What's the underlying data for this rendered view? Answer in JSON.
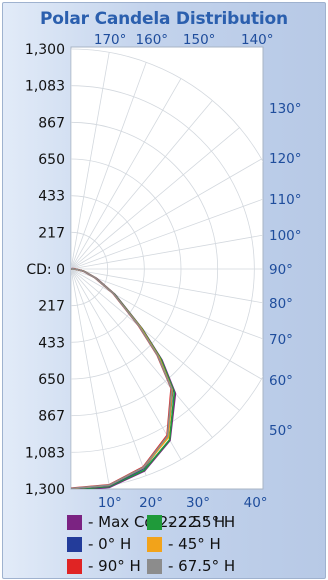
{
  "chart_data": {
    "type": "polar-line",
    "title": "Polar Candela Distribution",
    "candela_axis_label": "CD:",
    "candela_ticks": [
      0,
      217,
      433,
      650,
      867,
      1083,
      1300
    ],
    "candela_tick_labels": [
      "0",
      "217",
      "433",
      "650",
      "867",
      "1,083",
      "1,300"
    ],
    "rmax": 1300,
    "angle_ticks_top": [
      170,
      160,
      150,
      140
    ],
    "angle_ticks_right": [
      130,
      120,
      110,
      100,
      90,
      80,
      70,
      60,
      50
    ],
    "angle_ticks_bottom": [
      10,
      20,
      30,
      40
    ],
    "angle_unit": "°",
    "series": [
      {
        "name": "- Max Cd 222.5° H",
        "color": "#7b2382",
        "points": [
          [
            0,
            1310
          ],
          [
            10,
            1310
          ],
          [
            20,
            1270
          ],
          [
            30,
            1170
          ],
          [
            40,
            960
          ],
          [
            45,
            760
          ],
          [
            50,
            550
          ],
          [
            60,
            300
          ],
          [
            70,
            160
          ],
          [
            80,
            80
          ],
          [
            85,
            40
          ],
          [
            90,
            20
          ],
          [
            95,
            15
          ],
          [
            100,
            10
          ],
          [
            110,
            5
          ],
          [
            120,
            0
          ]
        ]
      },
      {
        "name": "- 22.5° H",
        "color": "#1f9a3a",
        "points": [
          [
            0,
            1305
          ],
          [
            10,
            1305
          ],
          [
            20,
            1265
          ],
          [
            30,
            1165
          ],
          [
            40,
            950
          ],
          [
            45,
            750
          ],
          [
            50,
            545
          ],
          [
            60,
            295
          ],
          [
            70,
            155
          ],
          [
            80,
            78
          ],
          [
            85,
            38
          ],
          [
            90,
            20
          ],
          [
            95,
            14
          ],
          [
            100,
            9
          ],
          [
            110,
            4
          ],
          [
            120,
            0
          ]
        ]
      },
      {
        "name": "- 0° H",
        "color": "#233c9a",
        "points": [
          [
            0,
            1300
          ],
          [
            10,
            1300
          ],
          [
            20,
            1255
          ],
          [
            30,
            1145
          ],
          [
            40,
            935
          ],
          [
            45,
            730
          ],
          [
            50,
            530
          ],
          [
            60,
            290
          ],
          [
            70,
            150
          ],
          [
            80,
            75
          ],
          [
            85,
            36
          ],
          [
            90,
            18
          ],
          [
            95,
            13
          ],
          [
            100,
            8
          ],
          [
            110,
            4
          ],
          [
            120,
            0
          ]
        ]
      },
      {
        "name": "- 45° H",
        "color": "#f2a31a",
        "points": [
          [
            0,
            1298
          ],
          [
            10,
            1298
          ],
          [
            20,
            1250
          ],
          [
            30,
            1150
          ],
          [
            40,
            930
          ],
          [
            45,
            735
          ],
          [
            50,
            535
          ],
          [
            60,
            288
          ],
          [
            70,
            152
          ],
          [
            80,
            76
          ],
          [
            85,
            37
          ],
          [
            90,
            19
          ],
          [
            95,
            13
          ],
          [
            100,
            8
          ],
          [
            110,
            4
          ],
          [
            120,
            0
          ]
        ]
      },
      {
        "name": "- 90° H",
        "color": "#e02424",
        "points": [
          [
            0,
            1295
          ],
          [
            10,
            1295
          ],
          [
            20,
            1245
          ],
          [
            30,
            1135
          ],
          [
            40,
            920
          ],
          [
            45,
            720
          ],
          [
            50,
            520
          ],
          [
            60,
            285
          ],
          [
            70,
            148
          ],
          [
            80,
            74
          ],
          [
            85,
            38
          ],
          [
            90,
            25
          ],
          [
            95,
            18
          ],
          [
            100,
            12
          ],
          [
            110,
            5
          ],
          [
            120,
            0
          ]
        ]
      },
      {
        "name": "- 67.5° H",
        "color": "#8c8c8c",
        "points": [
          [
            0,
            1297
          ],
          [
            10,
            1297
          ],
          [
            20,
            1248
          ],
          [
            30,
            1140
          ],
          [
            40,
            925
          ],
          [
            45,
            725
          ],
          [
            50,
            525
          ],
          [
            60,
            287
          ],
          [
            70,
            150
          ],
          [
            80,
            75
          ],
          [
            85,
            37
          ],
          [
            90,
            20
          ],
          [
            95,
            14
          ],
          [
            100,
            9
          ],
          [
            110,
            4
          ],
          [
            120,
            0
          ]
        ]
      }
    ],
    "legend_placement": "bottom",
    "grid": true
  }
}
